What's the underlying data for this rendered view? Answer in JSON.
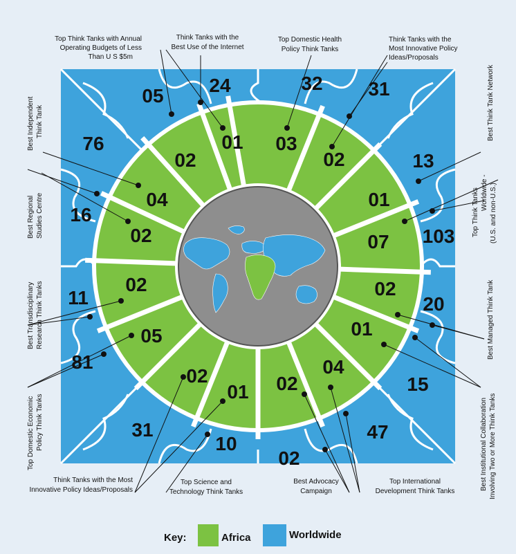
{
  "colors": {
    "africa": "#7cc242",
    "worldwide": "#3ea3dc",
    "globe": "#8e8e8e",
    "background": "#e6eef6"
  },
  "numbers": {
    "n01": "05",
    "n02": "24",
    "n03": "32",
    "n04": "31",
    "n05": "76",
    "n06": "13",
    "n07": "16",
    "n08": "103",
    "n09": "11",
    "n10": "20",
    "n11": "81",
    "n12": "15",
    "n13": "31",
    "n14": "10",
    "n15": "02",
    "n16": "47",
    "n17": "01",
    "n18": "02",
    "n19": "03",
    "n20": "02",
    "n21": "04",
    "n22": "01",
    "n23": "02",
    "n24": "07",
    "n25": "02",
    "n26": "02",
    "n27": "05",
    "n28": "01",
    "n29": "02",
    "n30": "01",
    "n31": "02",
    "n32": "04"
  },
  "labels": {
    "annual_budget": [
      "Top Think Tanks with Annual",
      "Operating Budgets of Less",
      "Than U S $5m"
    ],
    "internet": [
      "Think Tanks with the",
      "Best Use of the Internet"
    ],
    "health": [
      "Top Domestic Health",
      "Policy Think Tanks"
    ],
    "innovative_ideas": [
      "Think Tanks with the",
      "Most Innovative Policy",
      "Ideas/Proposals"
    ],
    "network": [
      "Best Think Tank Network"
    ],
    "independent": [
      "Best Independent",
      "Think Tank"
    ],
    "regional": [
      "Best Regional",
      "Studies Centre"
    ],
    "worldwide_top": [
      "Top Think Tanks",
      "Worldwide -",
      "(U.S. and non-U.S.)"
    ],
    "transdisciplinary": [
      "Best Transdisciplinary",
      "Research Think Tanks"
    ],
    "managed": [
      "Best Managed Think Tank"
    ],
    "economic": [
      "Top Domestic Economic",
      "Policy Think Tanks"
    ],
    "collaboration": [
      "Best Institutional Collaboration",
      "Involving Two or More Think Tanks"
    ],
    "innovative_policy": [
      "Think Tanks with the Most",
      "Innovative Policy Ideas/Proposals"
    ],
    "science": [
      "Top Science and",
      "Technology Think Tanks"
    ],
    "advocacy": [
      "Best Advocacy",
      "Campaign"
    ],
    "development": [
      "Top International",
      "Development Think Tanks"
    ]
  },
  "key": {
    "title": "Key:",
    "africa": "Africa",
    "worldwide": "Worldwide"
  }
}
